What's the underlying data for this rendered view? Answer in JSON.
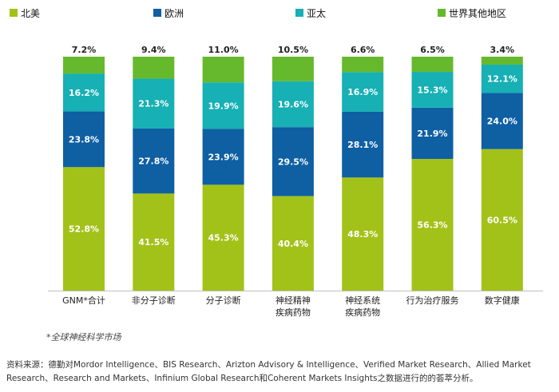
{
  "chart_data": {
    "type": "bar",
    "stacked": true,
    "normalized_percent": true,
    "categories": [
      [
        "GNM*合计"
      ],
      [
        "非分子诊断"
      ],
      [
        "分子诊断"
      ],
      [
        "神经精神",
        "疾病药物"
      ],
      [
        "神经系统",
        "疾病药物"
      ],
      [
        "行为治疗服务"
      ],
      [
        "数字健康"
      ]
    ],
    "series": [
      {
        "name": "北美",
        "color": "#a3c219",
        "label_color": "#ffffff",
        "values": [
          52.8,
          41.5,
          45.3,
          40.4,
          48.3,
          56.3,
          60.5
        ],
        "labels": [
          "52.8%",
          "41.5%",
          "45.3%",
          "40.4%",
          "48.3%",
          "56.3%",
          "60.5%"
        ]
      },
      {
        "name": "欧洲",
        "color": "#0f5fa3",
        "label_color": "#ffffff",
        "values": [
          23.8,
          27.8,
          23.9,
          29.5,
          28.1,
          21.9,
          24.0
        ],
        "labels": [
          "23.8%",
          "27.8%",
          "23.9%",
          "29.5%",
          "28.1%",
          "21.9%",
          "24.0%"
        ]
      },
      {
        "name": "亚太",
        "color": "#17b0b4",
        "label_color": "#ffffff",
        "values": [
          16.2,
          21.3,
          19.9,
          19.6,
          16.9,
          15.3,
          12.1
        ],
        "labels": [
          "16.2%",
          "21.3%",
          "19.9%",
          "19.6%",
          "16.9%",
          "15.3%",
          "12.1%"
        ]
      },
      {
        "name": "世界其他地区",
        "color": "#66b92c",
        "label_color": "#222222",
        "values": [
          7.2,
          9.4,
          11.0,
          10.5,
          6.6,
          6.5,
          3.4
        ],
        "labels": [
          "7.2%",
          "9.4%",
          "11.0%",
          "10.5%",
          "6.6%",
          "6.5%",
          "3.4%"
        ]
      }
    ],
    "ylim": [
      0,
      100
    ],
    "title": "",
    "xlabel": "",
    "ylabel": "",
    "legend_position": "top"
  },
  "footnote": "*全球神经科学市场",
  "source_text": "资料来源：德勤对Mordor Intelligence、BIS Research、Arizton Advisory & Intelligence、Verified Market Research、Allied Market Research、Research and Markets、Infinium Global Research和Coherent Markets Insights之数据进行的的荟萃分析。"
}
